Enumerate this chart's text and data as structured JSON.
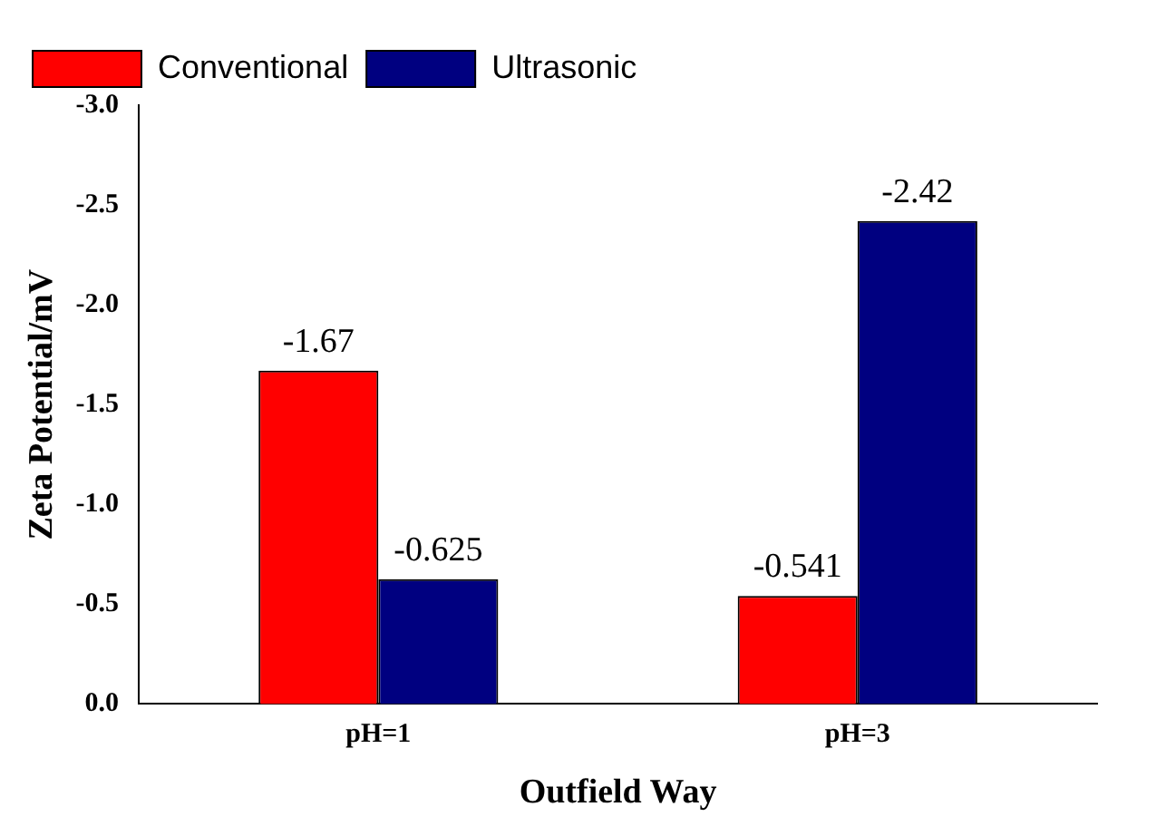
{
  "chart_data": {
    "type": "bar",
    "xlabel": "Outfield Way",
    "ylabel": "Zeta Potential/mV",
    "categories": [
      "pH=1",
      "pH=3"
    ],
    "series": [
      {
        "name": "Conventional",
        "color": "#ff0000",
        "values": [
          -1.67,
          -0.541
        ]
      },
      {
        "name": "Ultrasonic",
        "color": "#000080",
        "values": [
          -0.625,
          -2.42
        ]
      }
    ],
    "ylim": [
      0,
      -3
    ],
    "yticks": [
      {
        "value": 0,
        "label": "0.0"
      },
      -0.5,
      {
        "value": -1,
        "label": "-1.0"
      },
      -1.5,
      {
        "value": -2,
        "label": "-2.0"
      },
      -2.5,
      {
        "value": -3,
        "label": "-3.0"
      }
    ],
    "data_labels": true,
    "legend": "top left",
    "grid": false
  }
}
